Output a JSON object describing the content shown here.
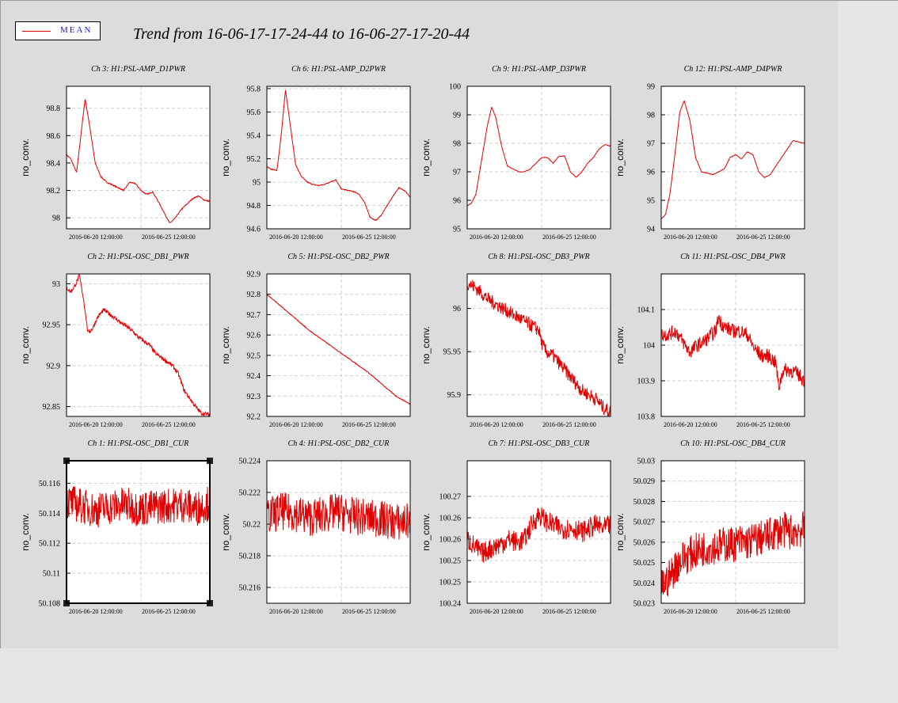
{
  "title": "Trend from 16-06-17-17-24-44 to 16-06-27-17-20-44",
  "legend": {
    "label": "MEAN",
    "color": "#e00000"
  },
  "chart_data": [
    {
      "type": "line",
      "title": "Ch 3: H1:PSL-AMP_D1PWR",
      "ylabel": "no_conv.",
      "ylim": [
        97.92,
        98.96
      ],
      "yticks": [
        "98",
        "98.2",
        "98.4",
        "98.6",
        "98.8"
      ],
      "xticks": [
        "2016-06-20 12:00:00",
        "2016-06-25 12:00:00"
      ],
      "grid": true,
      "noise": 0.004,
      "x": [
        0,
        0.03,
        0.07,
        0.1,
        0.13,
        0.16,
        0.2,
        0.24,
        0.28,
        0.32,
        0.36,
        0.4,
        0.44,
        0.48,
        0.52,
        0.56,
        0.6,
        0.64,
        0.68,
        0.72,
        0.76,
        0.8,
        0.84,
        0.88,
        0.92,
        0.96,
        1
      ],
      "y": [
        98.46,
        98.43,
        98.33,
        98.6,
        98.87,
        98.68,
        98.4,
        98.3,
        98.26,
        98.24,
        98.22,
        98.2,
        98.26,
        98.25,
        98.2,
        98.17,
        98.19,
        98.12,
        98.04,
        97.96,
        98,
        98.06,
        98.1,
        98.14,
        98.16,
        98.13,
        98.12
      ]
    },
    {
      "type": "line",
      "title": "Ch 6: H1:PSL-AMP_D2PWR",
      "ylabel": "no_conv.",
      "ylim": [
        94.6,
        95.82
      ],
      "yticks": [
        "94.6",
        "94.8",
        "95",
        "95.2",
        "95.4",
        "95.6",
        "95.8"
      ],
      "xticks": [
        "2016-06-20 12:00:00",
        "2016-06-25 12:00:00"
      ],
      "grid": true,
      "noise": 0.004,
      "x": [
        0,
        0.03,
        0.07,
        0.1,
        0.13,
        0.16,
        0.2,
        0.24,
        0.28,
        0.32,
        0.36,
        0.4,
        0.44,
        0.48,
        0.52,
        0.56,
        0.6,
        0.64,
        0.68,
        0.72,
        0.76,
        0.8,
        0.84,
        0.88,
        0.92,
        0.96,
        1
      ],
      "y": [
        95.13,
        95.11,
        95.1,
        95.4,
        95.79,
        95.52,
        95.15,
        95.05,
        95,
        94.98,
        94.97,
        94.98,
        95,
        95.02,
        94.94,
        94.93,
        94.92,
        94.9,
        94.83,
        94.7,
        94.67,
        94.72,
        94.8,
        94.88,
        94.95,
        94.93,
        94.87
      ]
    },
    {
      "type": "line",
      "title": "Ch 9: H1:PSL-AMP_D3PWR",
      "ylabel": "no_conv.",
      "ylim": [
        95,
        100
      ],
      "yticks": [
        "95",
        "96",
        "97",
        "98",
        "99",
        "100"
      ],
      "xticks": [
        "2016-06-20 12:00:00",
        "2016-06-25 12:00:00"
      ],
      "grid": true,
      "noise": 0.01,
      "x": [
        0,
        0.03,
        0.06,
        0.1,
        0.14,
        0.17,
        0.2,
        0.24,
        0.28,
        0.32,
        0.36,
        0.4,
        0.44,
        0.48,
        0.52,
        0.56,
        0.6,
        0.64,
        0.68,
        0.72,
        0.76,
        0.8,
        0.84,
        0.88,
        0.92,
        0.96,
        1
      ],
      "y": [
        95.8,
        95.9,
        96.2,
        97.4,
        98.6,
        99.28,
        98.9,
        97.9,
        97.2,
        97.1,
        97,
        97,
        97.1,
        97.3,
        97.5,
        97.5,
        97.3,
        97.55,
        97.55,
        97,
        96.8,
        97,
        97.3,
        97.5,
        97.8,
        97.95,
        97.9
      ]
    },
    {
      "type": "line",
      "title": "Ch 12: H1:PSL-AMP_D4PWR",
      "ylabel": "no_conv.",
      "ylim": [
        94,
        99
      ],
      "yticks": [
        "94",
        "95",
        "96",
        "97",
        "98",
        "99"
      ],
      "xticks": [
        "2016-06-20 12:00:00",
        "2016-06-25 12:00:00"
      ],
      "grid": true,
      "noise": 0.01,
      "x": [
        0,
        0.03,
        0.06,
        0.1,
        0.13,
        0.16,
        0.2,
        0.24,
        0.28,
        0.32,
        0.36,
        0.4,
        0.44,
        0.48,
        0.52,
        0.56,
        0.6,
        0.64,
        0.68,
        0.72,
        0.76,
        0.8,
        0.84,
        0.88,
        0.92,
        0.96,
        1
      ],
      "y": [
        94.35,
        94.5,
        95.2,
        96.8,
        98.1,
        98.5,
        97.8,
        96.5,
        96,
        95.95,
        95.9,
        96,
        96.1,
        96.5,
        96.6,
        96.45,
        96.7,
        96.6,
        96,
        95.8,
        95.9,
        96.2,
        96.5,
        96.8,
        97.1,
        97.05,
        97
      ]
    },
    {
      "type": "line",
      "title": "Ch 2: H1:PSL-OSC_DB1_PWR",
      "ylabel": "no_conv.",
      "ylim": [
        92.838,
        93.012
      ],
      "yticks": [
        "92.85",
        "92.9",
        "92.95",
        "93"
      ],
      "xticks": [
        "2016-06-20 12:00:00",
        "2016-06-25 12:00:00"
      ],
      "grid": true,
      "noise": 0.0025,
      "x": [
        0,
        0.03,
        0.06,
        0.09,
        0.12,
        0.15,
        0.18,
        0.22,
        0.26,
        0.3,
        0.34,
        0.38,
        0.42,
        0.46,
        0.5,
        0.54,
        0.58,
        0.62,
        0.66,
        0.7,
        0.74,
        0.78,
        0.82,
        0.86,
        0.9,
        0.94,
        1
      ],
      "y": [
        92.995,
        92.99,
        92.998,
        93.01,
        92.98,
        92.94,
        92.945,
        92.96,
        92.968,
        92.963,
        92.958,
        92.952,
        92.948,
        92.942,
        92.935,
        92.93,
        92.925,
        92.915,
        92.91,
        92.905,
        92.9,
        92.89,
        92.87,
        92.86,
        92.85,
        92.842,
        92.84
      ]
    },
    {
      "type": "line",
      "title": "Ch 5: H1:PSL-OSC_DB2_PWR",
      "ylabel": "no_conv.",
      "ylim": [
        92.2,
        92.9
      ],
      "yticks": [
        "92.2",
        "92.3",
        "92.4",
        "92.5",
        "92.6",
        "92.7",
        "92.8",
        "92.9"
      ],
      "xticks": [
        "2016-06-20 12:00:00",
        "2016-06-25 12:00:00"
      ],
      "grid": true,
      "noise": 0.002,
      "x": [
        0,
        0.1,
        0.2,
        0.3,
        0.4,
        0.5,
        0.6,
        0.7,
        0.8,
        0.9,
        1
      ],
      "y": [
        92.8,
        92.74,
        92.68,
        92.62,
        92.57,
        92.52,
        92.47,
        92.42,
        92.36,
        92.3,
        92.26
      ]
    },
    {
      "type": "line",
      "title": "Ch 8: H1:PSL-OSC_DB3_PWR",
      "ylabel": "no_conv.",
      "ylim": [
        95.875,
        96.04
      ],
      "yticks": [
        "95.9",
        "95.95",
        "96"
      ],
      "xticks": [
        "2016-06-20 12:00:00",
        "2016-06-25 12:00:00"
      ],
      "grid": true,
      "noise": 0.008,
      "x": [
        0,
        0.05,
        0.1,
        0.15,
        0.2,
        0.25,
        0.3,
        0.35,
        0.4,
        0.45,
        0.5,
        0.52,
        0.55,
        0.6,
        0.65,
        0.7,
        0.75,
        0.8,
        0.85,
        0.9,
        0.95,
        1
      ],
      "y": [
        96.03,
        96.025,
        96.018,
        96.01,
        96.005,
        96,
        95.995,
        95.99,
        95.985,
        95.98,
        95.975,
        95.96,
        95.95,
        95.945,
        95.935,
        95.925,
        95.915,
        95.905,
        95.9,
        95.895,
        95.885,
        95.88
      ]
    },
    {
      "type": "line",
      "title": "Ch 11: H1:PSL-OSC_DB4_PWR",
      "ylabel": "no_conv.",
      "ylim": [
        103.8,
        104.2
      ],
      "yticks": [
        "103.8",
        "103.9",
        "104",
        "104.1"
      ],
      "xticks": [
        "2016-06-20 12:00:00",
        "2016-06-25 12:00:00"
      ],
      "grid": true,
      "noise": 0.02,
      "x": [
        0,
        0.05,
        0.1,
        0.15,
        0.2,
        0.25,
        0.3,
        0.35,
        0.38,
        0.4,
        0.42,
        0.45,
        0.5,
        0.55,
        0.6,
        0.65,
        0.7,
        0.75,
        0.8,
        0.82,
        0.85,
        0.9,
        0.95,
        1
      ],
      "y": [
        104.03,
        104.03,
        104.04,
        104.01,
        103.98,
        104,
        104.01,
        104.03,
        104.04,
        104.08,
        104.06,
        104.05,
        104.04,
        104.04,
        104.03,
        103.99,
        103.97,
        103.97,
        103.95,
        103.88,
        103.93,
        103.93,
        103.92,
        103.9
      ]
    },
    {
      "type": "line",
      "title": "Ch 1: H1:PSL-OSC_DB1_CUR",
      "ylabel": "no_conv.",
      "ylim": [
        50.108,
        50.1175
      ],
      "yticks": [
        "50.108",
        "50.11",
        "50.112",
        "50.114",
        "50.116"
      ],
      "xticks": [
        "2016-06-20 12:00:00",
        "2016-06-25 12:00:00"
      ],
      "grid": true,
      "noise": 0.0012,
      "x": [
        0,
        0.1,
        0.2,
        0.3,
        0.4,
        0.5,
        0.6,
        0.7,
        0.8,
        0.9,
        1
      ],
      "y": [
        50.1148,
        50.1145,
        50.1142,
        50.1144,
        50.1146,
        50.1143,
        50.1144,
        50.1145,
        50.1146,
        50.1143,
        50.1147
      ]
    },
    {
      "type": "line",
      "title": "Ch 4: H1:PSL-OSC_DB2_CUR",
      "ylabel": "no_conv.",
      "ylim": [
        50.215,
        50.224
      ],
      "yticks": [
        "50.216",
        "50.218",
        "50.22",
        "50.222",
        "50.224"
      ],
      "xticks": [
        "2016-06-20 12:00:00",
        "2016-06-25 12:00:00"
      ],
      "grid": true,
      "noise": 0.0012,
      "x": [
        0,
        0.1,
        0.2,
        0.3,
        0.4,
        0.5,
        0.6,
        0.7,
        0.8,
        0.9,
        1
      ],
      "y": [
        50.2205,
        50.2208,
        50.2207,
        50.2204,
        50.2206,
        50.2208,
        50.2205,
        50.2204,
        50.2203,
        50.2201,
        50.2202
      ]
    },
    {
      "type": "line",
      "title": "Ch 7: H1:PSL-OSC_DB3_CUR",
      "ylabel": "no_conv.",
      "ylim": [
        100.24,
        100.28
      ],
      "yticks": [
        "100.24",
        "100.25",
        "100.25",
        "100.26",
        "100.26",
        "100.27"
      ],
      "xticks": [
        "2016-06-20 12:00:00",
        "2016-06-25 12:00:00"
      ],
      "grid": true,
      "noise": 0.003,
      "x": [
        0,
        0.05,
        0.1,
        0.15,
        0.2,
        0.25,
        0.3,
        0.35,
        0.4,
        0.45,
        0.5,
        0.55,
        0.6,
        0.65,
        0.7,
        0.75,
        0.8,
        0.85,
        0.9,
        0.95,
        1
      ],
      "y": [
        100.258,
        100.256,
        100.254,
        100.255,
        100.256,
        100.257,
        100.258,
        100.257,
        100.258,
        100.262,
        100.265,
        100.263,
        100.262,
        100.261,
        100.261,
        100.261,
        100.26,
        100.261,
        100.262,
        100.261,
        100.262
      ]
    },
    {
      "type": "line",
      "title": "Ch 10: H1:PSL-OSC_DB4_CUR",
      "ylabel": "no_conv.",
      "ylim": [
        50.023,
        50.03
      ],
      "yticks": [
        "50.023",
        "50.024",
        "50.025",
        "50.026",
        "50.027",
        "50.028",
        "50.029",
        "50.03"
      ],
      "xticks": [
        "2016-06-20 12:00:00",
        "2016-06-25 12:00:00"
      ],
      "grid": true,
      "noise": 0.0009,
      "x": [
        0,
        0.05,
        0.1,
        0.15,
        0.2,
        0.25,
        0.3,
        0.35,
        0.4,
        0.45,
        0.5,
        0.55,
        0.6,
        0.65,
        0.7,
        0.75,
        0.8,
        0.85,
        0.9,
        0.95,
        1
      ],
      "y": [
        50.0238,
        50.0242,
        50.0248,
        50.0252,
        50.0254,
        50.0256,
        50.0257,
        50.0258,
        50.0258,
        50.0259,
        50.0259,
        50.026,
        50.026,
        50.0261,
        50.0262,
        50.0263,
        50.0265,
        50.0266,
        50.0265,
        50.0266,
        50.0266
      ]
    }
  ]
}
